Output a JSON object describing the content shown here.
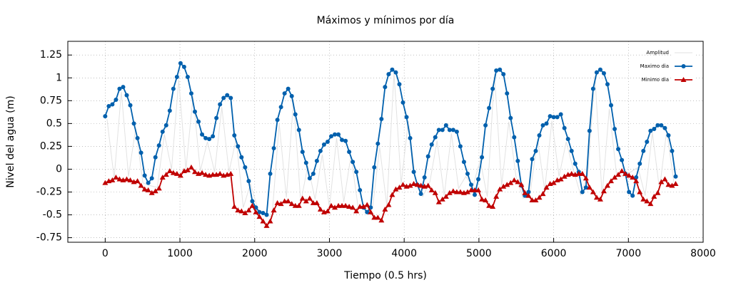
{
  "chart_data": {
    "type": "line",
    "title": "Máximos y mínimos por día",
    "x_label": "Tiempo (0.5 hrs)",
    "y_label": "Nivel del agua (m)",
    "xlim": [
      -500,
      8000
    ],
    "xticks": [
      0,
      1000,
      2000,
      3000,
      4000,
      5000,
      6000,
      7000,
      8000
    ],
    "ylim": [
      -0.8,
      1.4
    ],
    "yticks": [
      -0.75,
      -0.5,
      -0.25,
      0,
      0.25,
      0.5,
      0.75,
      1,
      1.25
    ],
    "grid": true,
    "legend": "upper right",
    "series": [
      {
        "name": "Amplitud",
        "color": "#e2e2e2",
        "marker": "none",
        "x": [
          24,
          120,
          216,
          312,
          408,
          504,
          600,
          696,
          792,
          888,
          984,
          1080,
          1176,
          1272,
          1368,
          1464,
          1560,
          1656,
          1752,
          1848,
          1944,
          2040,
          2136,
          2232,
          2328,
          2424,
          2520,
          2616,
          2712,
          2808,
          2904,
          3000,
          3096,
          3192,
          3288,
          3384,
          3480,
          3576,
          3672,
          3768,
          3864,
          3960,
          4056,
          4152,
          4248,
          4344,
          4440,
          4536,
          4632,
          4728,
          4824,
          4920,
          5016,
          5112,
          5208,
          5304,
          5400,
          5496,
          5592,
          5688,
          5784,
          5880,
          5976,
          6072,
          6168,
          6264,
          6360,
          6456,
          6552,
          6648,
          6744,
          6840,
          6936,
          7032,
          7128,
          7224,
          7320,
          7416,
          7512,
          7608
        ],
        "values": [
          0.55,
          -0.1,
          0.85,
          -0.08,
          0.45,
          -0.15,
          -0.18,
          -0.2,
          0.38,
          0.0,
          0.98,
          0,
          0.8,
          -0.02,
          0.3,
          -0.03,
          0.68,
          -0.03,
          0.33,
          -0.42,
          -0.16,
          -0.43,
          -0.5,
          -0.52,
          0.5,
          -0.31,
          0.76,
          -0.36,
          0.04,
          -0.33,
          0.16,
          -0.42,
          0.34,
          -0.36,
          0.15,
          -0.42,
          -0.45,
          -0.43,
          0.24,
          -0.4,
          1.05,
          -0.16,
          0.53,
          -0.12,
          -0.3,
          -0.14,
          0.31,
          -0.29,
          0.39,
          -0.21,
          -0.08,
          -0.19,
          0.1,
          -0.3,
          1.04,
          -0.18,
          0.52,
          -0.08,
          -0.32,
          -0.25,
          0.33,
          -0.23,
          0.53,
          -0.08,
          0.3,
          -0.01,
          -0.28,
          -0.06,
          1.02,
          -0.29,
          0.66,
          -0.05,
          -0.08,
          -0.03,
          0.02,
          -0.29,
          0.4,
          -0.22,
          0.42,
          -0.14
        ]
      },
      {
        "name": "Maximo dia",
        "color": "#0060ad",
        "marker": "circle",
        "x": [
          0,
          48,
          96,
          144,
          192,
          240,
          288,
          336,
          384,
          432,
          480,
          528,
          576,
          624,
          672,
          720,
          768,
          816,
          864,
          912,
          960,
          1008,
          1056,
          1104,
          1152,
          1200,
          1248,
          1296,
          1344,
          1392,
          1440,
          1488,
          1536,
          1584,
          1632,
          1680,
          1728,
          1776,
          1824,
          1872,
          1920,
          1968,
          2016,
          2064,
          2112,
          2160,
          2208,
          2256,
          2304,
          2352,
          2400,
          2448,
          2496,
          2544,
          2592,
          2640,
          2688,
          2736,
          2784,
          2832,
          2880,
          2928,
          2976,
          3024,
          3072,
          3120,
          3168,
          3216,
          3264,
          3312,
          3360,
          3408,
          3456,
          3504,
          3552,
          3600,
          3648,
          3696,
          3744,
          3792,
          3840,
          3888,
          3936,
          3984,
          4032,
          4080,
          4128,
          4176,
          4224,
          4272,
          4320,
          4368,
          4416,
          4464,
          4512,
          4560,
          4608,
          4656,
          4704,
          4752,
          4800,
          4848,
          4896,
          4944,
          4992,
          5040,
          5088,
          5136,
          5184,
          5232,
          5280,
          5328,
          5376,
          5424,
          5472,
          5520,
          5568,
          5616,
          5664,
          5712,
          5760,
          5808,
          5856,
          5904,
          5952,
          6000,
          6048,
          6096,
          6144,
          6192,
          6240,
          6288,
          6336,
          6384,
          6432,
          6480,
          6528,
          6576,
          6624,
          6672,
          6720,
          6768,
          6816,
          6864,
          6912,
          6960,
          7008,
          7056,
          7104,
          7152,
          7200,
          7248,
          7296,
          7344,
          7392,
          7440,
          7488,
          7536,
          7584,
          7632
        ],
        "values": [
          0.58,
          0.69,
          0.71,
          0.76,
          0.88,
          0.9,
          0.81,
          0.7,
          0.5,
          0.34,
          0.18,
          -0.07,
          -0.15,
          -0.1,
          0.13,
          0.26,
          0.41,
          0.48,
          0.64,
          0.88,
          1.01,
          1.16,
          1.12,
          1.01,
          0.83,
          0.63,
          0.52,
          0.38,
          0.34,
          0.33,
          0.36,
          0.56,
          0.71,
          0.78,
          0.81,
          0.78,
          0.37,
          0.25,
          0.13,
          0.02,
          -0.13,
          -0.35,
          -0.42,
          -0.47,
          -0.48,
          -0.5,
          -0.05,
          0.23,
          0.54,
          0.68,
          0.83,
          0.88,
          0.8,
          0.6,
          0.43,
          0.19,
          0.07,
          -0.1,
          -0.05,
          0.09,
          0.2,
          0.27,
          0.3,
          0.36,
          0.38,
          0.38,
          0.32,
          0.31,
          0.19,
          0.08,
          -0.03,
          -0.23,
          -0.42,
          -0.47,
          -0.42,
          0.02,
          0.28,
          0.55,
          0.9,
          1.04,
          1.09,
          1.06,
          0.93,
          0.73,
          0.57,
          0.34,
          -0.03,
          -0.17,
          -0.27,
          -0.09,
          0.14,
          0.27,
          0.35,
          0.43,
          0.43,
          0.48,
          0.43,
          0.43,
          0.41,
          0.25,
          0.08,
          -0.05,
          -0.17,
          -0.28,
          -0.11,
          0.13,
          0.48,
          0.67,
          0.88,
          1.08,
          1.09,
          1.04,
          0.83,
          0.56,
          0.35,
          0.09,
          -0.18,
          -0.29,
          -0.25,
          0.11,
          0.2,
          0.37,
          0.48,
          0.5,
          0.58,
          0.57,
          0.57,
          0.6,
          0.45,
          0.33,
          0.2,
          0.06,
          -0.03,
          -0.25,
          -0.2,
          0.42,
          0.88,
          1.06,
          1.09,
          1.05,
          0.93,
          0.7,
          0.44,
          0.22,
          0.1,
          -0.05,
          -0.25,
          -0.29,
          -0.09,
          0.06,
          0.2,
          0.3,
          0.42,
          0.44,
          0.48,
          0.48,
          0.45,
          0.37,
          0.2,
          -0.08
        ]
      },
      {
        "name": "Minimo dia",
        "color": "#c00000",
        "marker": "triangle",
        "x": [
          0,
          48,
          96,
          144,
          192,
          240,
          288,
          336,
          384,
          432,
          480,
          528,
          576,
          624,
          672,
          720,
          768,
          816,
          864,
          912,
          960,
          1008,
          1056,
          1104,
          1152,
          1200,
          1248,
          1296,
          1344,
          1392,
          1440,
          1488,
          1536,
          1584,
          1632,
          1680,
          1728,
          1776,
          1824,
          1872,
          1920,
          1968,
          2016,
          2064,
          2112,
          2160,
          2208,
          2256,
          2304,
          2352,
          2400,
          2448,
          2496,
          2544,
          2592,
          2640,
          2688,
          2736,
          2784,
          2832,
          2880,
          2928,
          2976,
          3024,
          3072,
          3120,
          3168,
          3216,
          3264,
          3312,
          3360,
          3408,
          3456,
          3504,
          3552,
          3600,
          3648,
          3696,
          3744,
          3792,
          3840,
          3888,
          3936,
          3984,
          4032,
          4080,
          4128,
          4176,
          4224,
          4272,
          4320,
          4368,
          4416,
          4464,
          4512,
          4560,
          4608,
          4656,
          4704,
          4752,
          4800,
          4848,
          4896,
          4944,
          4992,
          5040,
          5088,
          5136,
          5184,
          5232,
          5280,
          5328,
          5376,
          5424,
          5472,
          5520,
          5568,
          5616,
          5664,
          5712,
          5760,
          5808,
          5856,
          5904,
          5952,
          6000,
          6048,
          6096,
          6144,
          6192,
          6240,
          6288,
          6336,
          6384,
          6432,
          6480,
          6528,
          6576,
          6624,
          6672,
          6720,
          6768,
          6816,
          6864,
          6912,
          6960,
          7008,
          7056,
          7104,
          7152,
          7200,
          7248,
          7296,
          7344,
          7392,
          7440,
          7488,
          7536,
          7584,
          7632
        ],
        "values": [
          -0.15,
          -0.13,
          -0.12,
          -0.09,
          -0.11,
          -0.12,
          -0.11,
          -0.12,
          -0.14,
          -0.13,
          -0.18,
          -0.22,
          -0.23,
          -0.26,
          -0.24,
          -0.21,
          -0.09,
          -0.06,
          -0.02,
          -0.04,
          -0.05,
          -0.07,
          -0.02,
          -0.01,
          0.02,
          -0.03,
          -0.05,
          -0.04,
          -0.06,
          -0.07,
          -0.06,
          -0.06,
          -0.05,
          -0.07,
          -0.06,
          -0.05,
          -0.41,
          -0.45,
          -0.46,
          -0.48,
          -0.45,
          -0.4,
          -0.47,
          -0.52,
          -0.57,
          -0.62,
          -0.57,
          -0.45,
          -0.37,
          -0.38,
          -0.35,
          -0.35,
          -0.38,
          -0.4,
          -0.4,
          -0.32,
          -0.35,
          -0.32,
          -0.37,
          -0.37,
          -0.44,
          -0.47,
          -0.46,
          -0.4,
          -0.42,
          -0.4,
          -0.4,
          -0.4,
          -0.41,
          -0.42,
          -0.46,
          -0.41,
          -0.41,
          -0.39,
          -0.47,
          -0.53,
          -0.53,
          -0.56,
          -0.44,
          -0.39,
          -0.28,
          -0.22,
          -0.2,
          -0.17,
          -0.19,
          -0.18,
          -0.16,
          -0.17,
          -0.18,
          -0.19,
          -0.18,
          -0.23,
          -0.26,
          -0.36,
          -0.33,
          -0.3,
          -0.26,
          -0.24,
          -0.25,
          -0.25,
          -0.26,
          -0.25,
          -0.23,
          -0.23,
          -0.23,
          -0.33,
          -0.34,
          -0.4,
          -0.41,
          -0.3,
          -0.22,
          -0.19,
          -0.17,
          -0.15,
          -0.12,
          -0.14,
          -0.17,
          -0.26,
          -0.29,
          -0.34,
          -0.34,
          -0.31,
          -0.27,
          -0.2,
          -0.16,
          -0.15,
          -0.12,
          -0.11,
          -0.08,
          -0.06,
          -0.05,
          -0.06,
          -0.05,
          -0.05,
          -0.1,
          -0.2,
          -0.25,
          -0.31,
          -0.33,
          -0.24,
          -0.18,
          -0.13,
          -0.09,
          -0.06,
          -0.02,
          -0.05,
          -0.07,
          -0.09,
          -0.13,
          -0.25,
          -0.33,
          -0.35,
          -0.38,
          -0.3,
          -0.26,
          -0.14,
          -0.11,
          -0.17,
          -0.18,
          -0.16
        ]
      }
    ]
  }
}
